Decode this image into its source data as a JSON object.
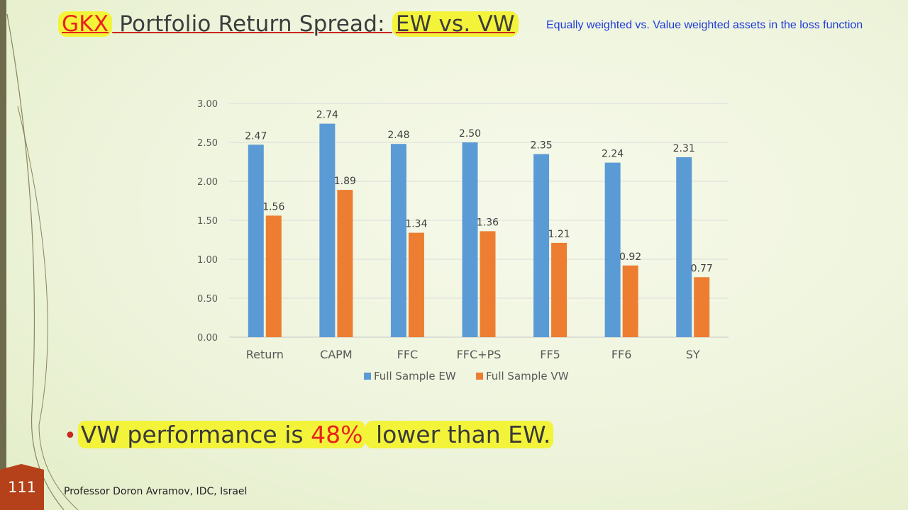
{
  "slide": {
    "title_highlight": "GKX",
    "title_mid": " Portfolio Return Spread: ",
    "title_end": "EW vs. VW",
    "subtitle": "Equally weighted vs. Value weighted assets in the loss function",
    "bullet_pre": "VW performance is ",
    "bullet_pct": "48%",
    "bullet_post": " lower than EW.",
    "page_number": "111",
    "footer": "Professor Doron Avramov, IDC, Israel"
  },
  "colors": {
    "ew": "#5b9bd5",
    "vw": "#ed7d31",
    "axis_text": "#595959",
    "page_tab": "#b5411a"
  },
  "chart_data": {
    "type": "bar",
    "categories": [
      "Return",
      "CAPM",
      "FFC",
      "FFC+PS",
      "FF5",
      "FF6",
      "SY"
    ],
    "series": [
      {
        "name": "Full Sample EW",
        "values": [
          2.47,
          2.74,
          2.48,
          2.5,
          2.35,
          2.24,
          2.31
        ]
      },
      {
        "name": "Full Sample VW",
        "values": [
          1.56,
          1.89,
          1.34,
          1.36,
          1.21,
          0.92,
          0.77
        ]
      }
    ],
    "yticks": [
      "0.00",
      "0.50",
      "1.00",
      "1.50",
      "2.00",
      "2.50",
      "3.00"
    ],
    "ylim": [
      0,
      3
    ],
    "grid": true,
    "legend": "bottom"
  }
}
